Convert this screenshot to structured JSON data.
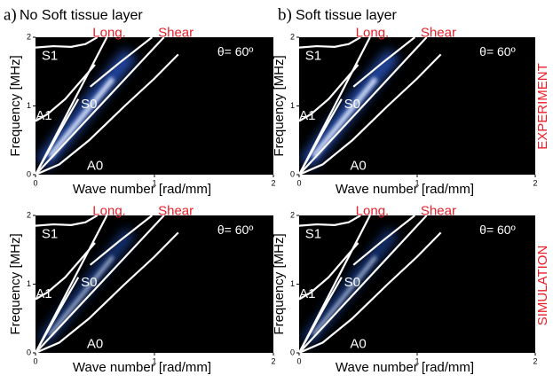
{
  "panel_labels": [
    "a)",
    "b)"
  ],
  "column_titles": [
    "No Soft tissue layer",
    "Soft tissue layer"
  ],
  "row_labels": [
    "EXPERIMENT",
    "SIMULATION"
  ],
  "label_color": "#e8202a",
  "chart_data": [
    {
      "type": "heatmap",
      "xlabel": "Wave number [rad/mm]",
      "ylabel": "Frequency [MHz]",
      "annotation": "θ= 60º",
      "xlim": [
        0,
        2
      ],
      "ylim": [
        0,
        2
      ],
      "xticks": [
        0,
        1,
        2
      ],
      "yticks": [
        0,
        1,
        2
      ],
      "series": [
        {
          "name": "Long.",
          "color": "#ffffff",
          "x": [
            0,
            0.6
          ],
          "values": [
            0,
            2
          ]
        },
        {
          "name": "Shear",
          "color": "#ffffff",
          "x": [
            0,
            1.08
          ],
          "values": [
            0,
            2
          ]
        },
        {
          "name": "S1",
          "color": "#ffffff",
          "x": [
            0,
            0.15,
            0.3,
            0.42,
            0.52
          ],
          "values": [
            1.85,
            1.87,
            1.86,
            1.9,
            2
          ]
        },
        {
          "name": "A1",
          "color": "#ffffff",
          "x": [
            0,
            0.1,
            0.25,
            0.4,
            0.5
          ],
          "values": [
            0.78,
            0.88,
            1.1,
            1.4,
            1.6
          ]
        },
        {
          "name": "S0",
          "color": "#ffffff",
          "x": [
            0,
            0.2,
            0.36,
            0.4,
            0.46,
            0.7,
            0.98
          ],
          "values": [
            0,
            0.62,
            1.1,
            null,
            1.28,
            1.62,
            2
          ]
        },
        {
          "name": "A0",
          "color": "#ffffff",
          "x": [
            0,
            0.2,
            0.45,
            0.75,
            1.0,
            1.2
          ],
          "values": [
            0,
            0.15,
            0.5,
            1.0,
            1.4,
            1.75
          ]
        }
      ]
    },
    {
      "type": "heatmap",
      "xlabel": "Wave number [rad/mm]",
      "ylabel": "Frequency [MHz]",
      "annotation": "θ= 60º",
      "xlim": [
        0,
        2
      ],
      "ylim": [
        0,
        2
      ],
      "xticks": [
        0,
        1,
        2
      ],
      "yticks": [
        0,
        1,
        2
      ],
      "series": [
        {
          "name": "Long.",
          "color": "#ffffff",
          "x": [
            0,
            0.6
          ],
          "values": [
            0,
            2
          ]
        },
        {
          "name": "Shear",
          "color": "#ffffff",
          "x": [
            0,
            1.08
          ],
          "values": [
            0,
            2
          ]
        },
        {
          "name": "S1",
          "color": "#ffffff",
          "x": [
            0,
            0.15,
            0.3,
            0.42,
            0.52
          ],
          "values": [
            1.85,
            1.87,
            1.86,
            1.9,
            2
          ]
        },
        {
          "name": "A1",
          "color": "#ffffff",
          "x": [
            0,
            0.1,
            0.25,
            0.4,
            0.5
          ],
          "values": [
            0.78,
            0.88,
            1.1,
            1.4,
            1.6
          ]
        },
        {
          "name": "S0",
          "color": "#ffffff",
          "x": [
            0,
            0.2,
            0.36,
            0.4,
            0.46,
            0.7,
            0.98
          ],
          "values": [
            0,
            0.62,
            1.1,
            null,
            1.28,
            1.62,
            2
          ]
        },
        {
          "name": "A0",
          "color": "#ffffff",
          "x": [
            0,
            0.2,
            0.45,
            0.75,
            1.0,
            1.2
          ],
          "values": [
            0,
            0.15,
            0.5,
            1.0,
            1.4,
            1.75
          ]
        }
      ]
    },
    {
      "type": "heatmap",
      "xlabel": "Wave number [rad/mm]",
      "ylabel": "Frequency [MHz]",
      "annotation": "θ= 60º",
      "xlim": [
        0,
        2
      ],
      "ylim": [
        0,
        2
      ],
      "xticks": [
        0,
        1,
        2
      ],
      "yticks": [
        0,
        1,
        2
      ],
      "series": [
        {
          "name": "Long.",
          "color": "#ffffff",
          "x": [
            0,
            0.6
          ],
          "values": [
            0,
            2
          ]
        },
        {
          "name": "Shear",
          "color": "#ffffff",
          "x": [
            0,
            1.08
          ],
          "values": [
            0,
            2
          ]
        },
        {
          "name": "S1",
          "color": "#ffffff",
          "x": [
            0,
            0.15,
            0.3,
            0.42,
            0.52
          ],
          "values": [
            1.85,
            1.87,
            1.86,
            1.9,
            2
          ]
        },
        {
          "name": "A1",
          "color": "#ffffff",
          "x": [
            0,
            0.1,
            0.25,
            0.4,
            0.5
          ],
          "values": [
            0.78,
            0.88,
            1.1,
            1.4,
            1.6
          ]
        },
        {
          "name": "S0",
          "color": "#ffffff",
          "x": [
            0,
            0.2,
            0.36,
            0.4,
            0.46,
            0.7,
            0.98
          ],
          "values": [
            0,
            0.62,
            1.1,
            null,
            1.28,
            1.62,
            2
          ]
        },
        {
          "name": "A0",
          "color": "#ffffff",
          "x": [
            0,
            0.2,
            0.45,
            0.75,
            1.0,
            1.2
          ],
          "values": [
            0,
            0.15,
            0.5,
            1.0,
            1.4,
            1.75
          ]
        }
      ]
    },
    {
      "type": "heatmap",
      "xlabel": "Wave number [rad/mm]",
      "ylabel": "Frequency [MHz]",
      "annotation": "θ= 60º",
      "xlim": [
        0,
        2
      ],
      "ylim": [
        0,
        2
      ],
      "xticks": [
        0,
        1,
        2
      ],
      "yticks": [
        0,
        1,
        2
      ],
      "series": [
        {
          "name": "Long.",
          "color": "#ffffff",
          "x": [
            0,
            0.6
          ],
          "values": [
            0,
            2
          ]
        },
        {
          "name": "Shear",
          "color": "#ffffff",
          "x": [
            0,
            1.08
          ],
          "values": [
            0,
            2
          ]
        },
        {
          "name": "S1",
          "color": "#ffffff",
          "x": [
            0,
            0.15,
            0.3,
            0.42,
            0.52
          ],
          "values": [
            1.85,
            1.87,
            1.86,
            1.9,
            2
          ]
        },
        {
          "name": "A1",
          "color": "#ffffff",
          "x": [
            0,
            0.1,
            0.25,
            0.4,
            0.5
          ],
          "values": [
            0.78,
            0.88,
            1.1,
            1.4,
            1.6
          ]
        },
        {
          "name": "S0",
          "color": "#ffffff",
          "x": [
            0,
            0.2,
            0.36,
            0.4,
            0.46,
            0.7,
            0.98
          ],
          "values": [
            0,
            0.62,
            1.1,
            null,
            1.28,
            1.62,
            2
          ]
        },
        {
          "name": "A0",
          "color": "#ffffff",
          "x": [
            0,
            0.2,
            0.45,
            0.75,
            1.0,
            1.2
          ],
          "values": [
            0,
            0.15,
            0.5,
            1.0,
            1.4,
            1.75
          ]
        }
      ]
    }
  ]
}
